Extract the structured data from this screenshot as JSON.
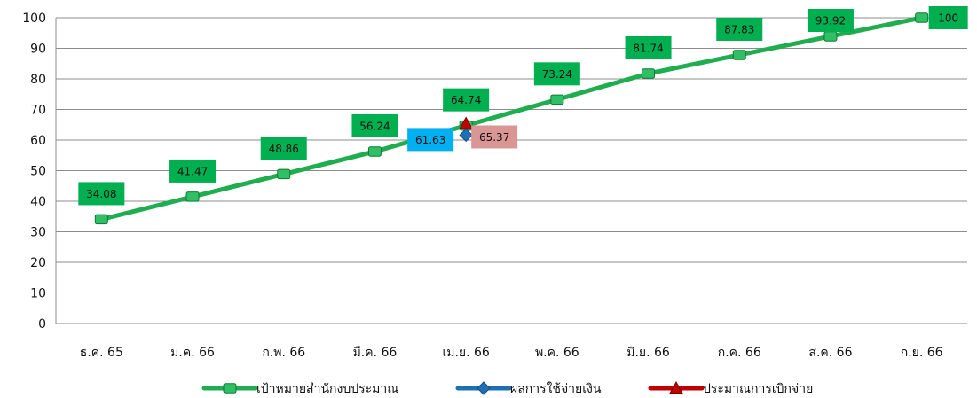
{
  "chart_data": {
    "type": "line",
    "categories": [
      "ธ.ค. 65",
      "ม.ค. 66",
      "ก.พ. 66",
      "มี.ค. 66",
      "เม.ย. 66",
      "พ.ค. 66",
      "มิ.ย. 66",
      "ก.ค. 66",
      "ส.ค. 66",
      "ก.ย. 66"
    ],
    "ylim": [
      0,
      100
    ],
    "yticks": [
      0,
      10,
      20,
      30,
      40,
      50,
      60,
      70,
      80,
      90,
      100
    ],
    "grid": true,
    "legend_position": "bottom",
    "series": [
      {
        "name": "เป้าหมายสำนักงบประมาณ",
        "color": "#1fad4f",
        "label_bg": "#00b050",
        "marker": "square",
        "values": [
          34.08,
          41.47,
          48.86,
          56.24,
          64.74,
          73.24,
          81.74,
          87.83,
          93.92,
          100
        ],
        "labels": [
          "34.08",
          "41.47",
          "48.86",
          "56.24",
          "64.74",
          "73.24",
          "81.74",
          "87.83",
          "93.92",
          "100"
        ]
      },
      {
        "name": "ผลการใช้จ่ายเงิน",
        "color": "#1f6fb5",
        "label_bg": "#00b0f0",
        "marker": "diamond",
        "values": [
          null,
          null,
          null,
          null,
          61.63,
          null,
          null,
          null,
          null,
          null
        ],
        "labels": [
          null,
          null,
          null,
          null,
          "61.63",
          null,
          null,
          null,
          null,
          null
        ]
      },
      {
        "name": "ประมาณการเบิกจ่าย",
        "color": "#c00000",
        "label_bg": "#d99694",
        "marker": "triangle",
        "values": [
          null,
          null,
          null,
          null,
          65.37,
          null,
          null,
          null,
          null,
          null
        ],
        "labels": [
          null,
          null,
          null,
          null,
          "65.37",
          null,
          null,
          null,
          null,
          null
        ]
      }
    ]
  }
}
